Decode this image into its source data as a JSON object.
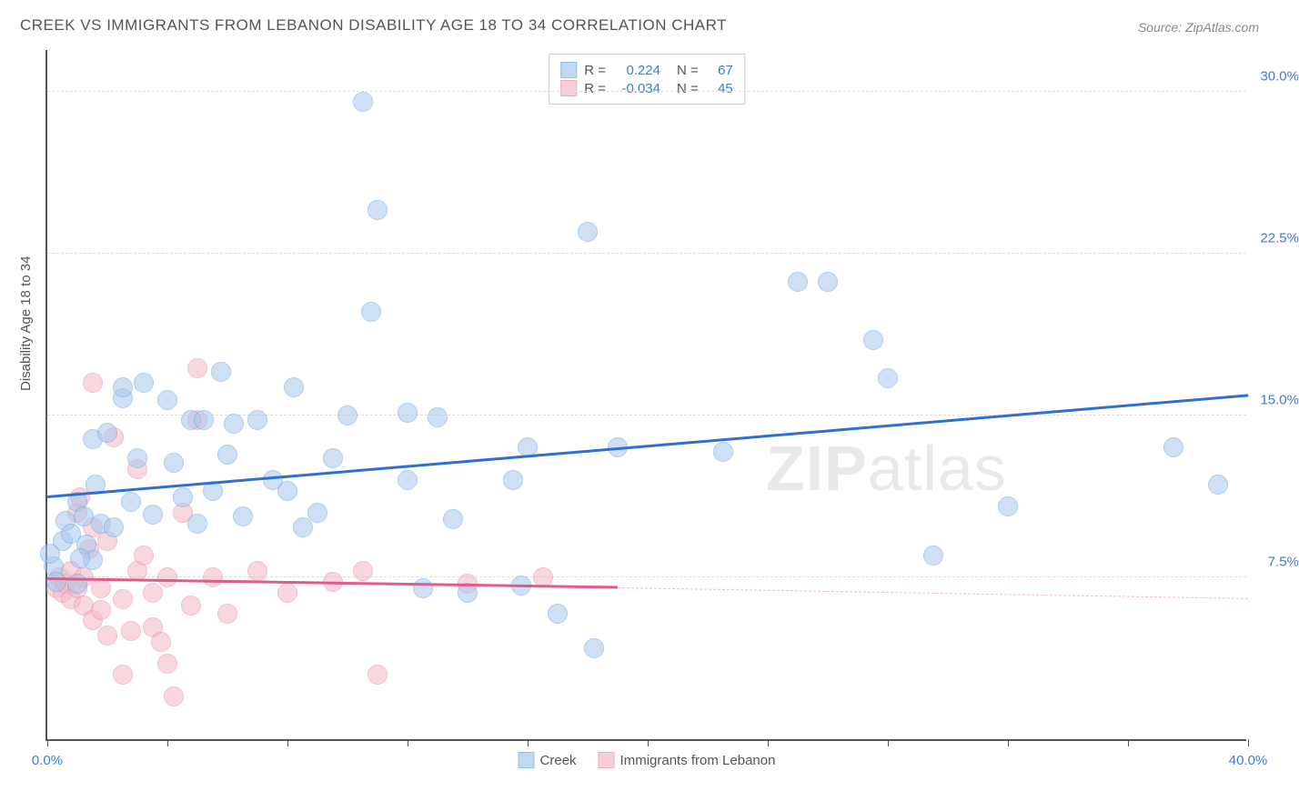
{
  "title": "CREEK VS IMMIGRANTS FROM LEBANON DISABILITY AGE 18 TO 34 CORRELATION CHART",
  "source": "Source: ZipAtlas.com",
  "y_axis_title": "Disability Age 18 to 34",
  "watermark_bold": "ZIP",
  "watermark_light": "atlas",
  "chart": {
    "type": "scatter",
    "xlim": [
      0,
      40
    ],
    "ylim": [
      0,
      32
    ],
    "x_tick_positions": [
      0,
      4,
      8,
      12,
      16,
      20,
      24,
      28,
      32,
      36,
      40
    ],
    "x_tick_labels": {
      "0": "0.0%",
      "40": "40.0%"
    },
    "y_grid_positions": [
      7.5,
      15.0,
      22.5,
      30.0
    ],
    "y_tick_labels": [
      "7.5%",
      "15.0%",
      "22.5%",
      "30.0%"
    ],
    "background_color": "#ffffff",
    "grid_color": "#dddddd",
    "axis_color": "#555555",
    "tick_label_color": "#3b7dd8",
    "series": [
      {
        "name": "Creek",
        "fill_color": "#a8c8ec",
        "stroke_color": "#6ba3e0",
        "fill_opacity": 0.55,
        "marker_radius": 11,
        "R": "0.224",
        "N": "67",
        "trend": {
          "x1": 0,
          "y1": 11.2,
          "x2": 40,
          "y2": 15.9,
          "color": "#2f6fd0",
          "width": 2.5
        },
        "points": [
          [
            0.2,
            8.0
          ],
          [
            0.3,
            7.3
          ],
          [
            0.5,
            9.2
          ],
          [
            0.6,
            10.1
          ],
          [
            0.8,
            9.5
          ],
          [
            1.0,
            11.0
          ],
          [
            1.0,
            7.2
          ],
          [
            1.2,
            10.3
          ],
          [
            1.3,
            9.0
          ],
          [
            1.5,
            8.3
          ],
          [
            1.5,
            13.9
          ],
          [
            1.8,
            10.0
          ],
          [
            2.0,
            14.2
          ],
          [
            2.2,
            9.8
          ],
          [
            2.5,
            15.8
          ],
          [
            2.5,
            16.3
          ],
          [
            2.8,
            11.0
          ],
          [
            3.0,
            13.0
          ],
          [
            3.5,
            10.4
          ],
          [
            4.0,
            15.7
          ],
          [
            4.2,
            12.8
          ],
          [
            4.5,
            11.2
          ],
          [
            4.8,
            14.8
          ],
          [
            5.0,
            10.0
          ],
          [
            5.2,
            14.8
          ],
          [
            5.5,
            11.5
          ],
          [
            6.0,
            13.2
          ],
          [
            6.5,
            10.3
          ],
          [
            7.0,
            14.8
          ],
          [
            7.5,
            12.0
          ],
          [
            8.0,
            11.5
          ],
          [
            8.2,
            16.3
          ],
          [
            8.5,
            9.8
          ],
          [
            9.0,
            10.5
          ],
          [
            10.0,
            15.0
          ],
          [
            10.5,
            29.5
          ],
          [
            10.8,
            19.8
          ],
          [
            11.0,
            24.5
          ],
          [
            12.0,
            15.1
          ],
          [
            12.0,
            12.0
          ],
          [
            12.5,
            7.0
          ],
          [
            13.0,
            14.9
          ],
          [
            13.5,
            10.2
          ],
          [
            14.0,
            6.8
          ],
          [
            15.5,
            12.0
          ],
          [
            15.8,
            7.1
          ],
          [
            16.0,
            13.5
          ],
          [
            17.0,
            5.8
          ],
          [
            18.0,
            23.5
          ],
          [
            18.2,
            4.2
          ],
          [
            19.0,
            13.5
          ],
          [
            22.5,
            13.3
          ],
          [
            25.0,
            21.2
          ],
          [
            26.0,
            21.2
          ],
          [
            27.5,
            18.5
          ],
          [
            28.0,
            16.7
          ],
          [
            29.5,
            8.5
          ],
          [
            32.0,
            10.8
          ],
          [
            37.5,
            13.5
          ],
          [
            39.0,
            11.8
          ],
          [
            0.1,
            8.6
          ],
          [
            1.1,
            8.4
          ],
          [
            1.6,
            11.8
          ],
          [
            3.2,
            16.5
          ],
          [
            5.8,
            17.0
          ],
          [
            6.2,
            14.6
          ],
          [
            9.5,
            13.0
          ]
        ]
      },
      {
        "name": "Immigrants from Lebanon",
        "fill_color": "#f4b8c6",
        "stroke_color": "#e88ba3",
        "fill_opacity": 0.55,
        "marker_radius": 11,
        "R": "-0.034",
        "N": "45",
        "trend": {
          "x1": 0,
          "y1": 7.4,
          "x2": 19,
          "y2": 7.0,
          "color": "#e05a8a",
          "width": 2.5,
          "dash_to_x": 40,
          "dash_y": 6.5,
          "dash_color": "#f4b8c6"
        },
        "points": [
          [
            0.3,
            7.0
          ],
          [
            0.4,
            7.5
          ],
          [
            0.5,
            6.8
          ],
          [
            0.6,
            7.2
          ],
          [
            0.8,
            6.5
          ],
          [
            0.8,
            7.8
          ],
          [
            1.0,
            7.0
          ],
          [
            1.0,
            10.5
          ],
          [
            1.1,
            11.2
          ],
          [
            1.2,
            6.2
          ],
          [
            1.2,
            7.5
          ],
          [
            1.4,
            8.8
          ],
          [
            1.5,
            9.8
          ],
          [
            1.5,
            5.5
          ],
          [
            1.5,
            16.5
          ],
          [
            1.8,
            7.0
          ],
          [
            1.8,
            6.0
          ],
          [
            2.0,
            4.8
          ],
          [
            2.0,
            9.2
          ],
          [
            2.2,
            14.0
          ],
          [
            2.5,
            6.5
          ],
          [
            2.5,
            3.0
          ],
          [
            2.8,
            5.0
          ],
          [
            3.0,
            7.8
          ],
          [
            3.0,
            12.5
          ],
          [
            3.2,
            8.5
          ],
          [
            3.5,
            6.8
          ],
          [
            3.5,
            5.2
          ],
          [
            3.8,
            4.5
          ],
          [
            4.0,
            3.5
          ],
          [
            4.0,
            7.5
          ],
          [
            4.2,
            2.0
          ],
          [
            4.5,
            10.5
          ],
          [
            4.8,
            6.2
          ],
          [
            5.0,
            14.8
          ],
          [
            5.0,
            17.2
          ],
          [
            5.5,
            7.5
          ],
          [
            6.0,
            5.8
          ],
          [
            7.0,
            7.8
          ],
          [
            8.0,
            6.8
          ],
          [
            9.5,
            7.3
          ],
          [
            10.5,
            7.8
          ],
          [
            11.0,
            3.0
          ],
          [
            14.0,
            7.2
          ],
          [
            16.5,
            7.5
          ]
        ]
      }
    ],
    "bottom_legend": [
      {
        "label": "Creek",
        "fill": "#a8c8ec",
        "stroke": "#6ba3e0"
      },
      {
        "label": "Immigrants from Lebanon",
        "fill": "#f4b8c6",
        "stroke": "#e88ba3"
      }
    ]
  }
}
